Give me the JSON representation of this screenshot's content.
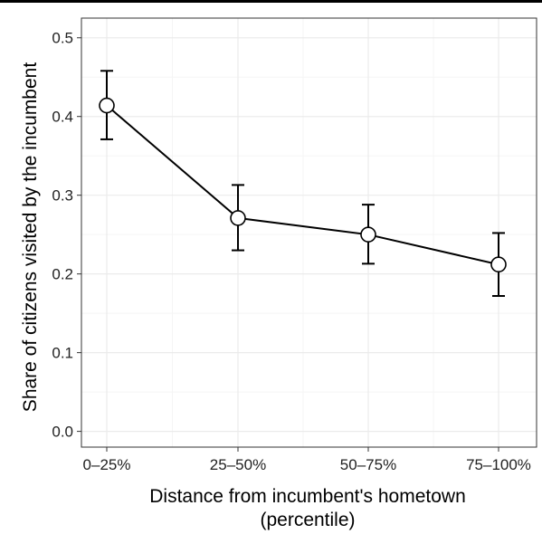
{
  "chart_data": {
    "type": "line",
    "title": "",
    "xlabel": "Distance from incumbent's hometown",
    "xlabel_line2": "(percentile)",
    "ylabel": "Share of citizens visited by the incumbent",
    "categories": [
      "0–25%",
      "25–50%",
      "50–75%",
      "75–100%"
    ],
    "series": [
      {
        "values": [
          0.414,
          0.271,
          0.25,
          0.212
        ],
        "ci_lower": [
          0.371,
          0.23,
          0.213,
          0.172
        ],
        "ci_upper": [
          0.458,
          0.313,
          0.288,
          0.252
        ]
      }
    ],
    "ylim": [
      -0.02,
      0.525
    ],
    "yticks": [
      0.0,
      0.1,
      0.2,
      0.3,
      0.4,
      0.5
    ],
    "ytick_labels": [
      "0.0",
      "0.1",
      "0.2",
      "0.3",
      "0.4",
      "0.5"
    ],
    "grid": true,
    "marker": "open-circle",
    "line_color": "#000000",
    "grid_major_color": "#ebebeb",
    "grid_minor_color": "#f5f5f5"
  }
}
